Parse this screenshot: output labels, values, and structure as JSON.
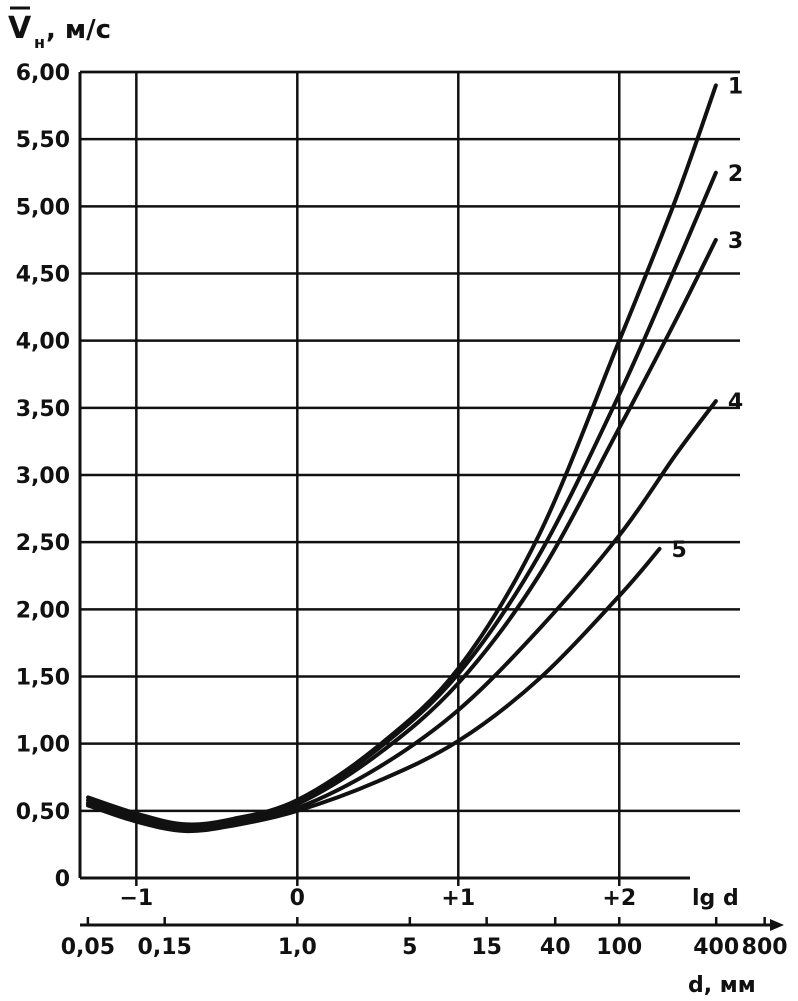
{
  "chart_data": {
    "type": "line",
    "y_axis": {
      "label_symbol": "V",
      "label_subscript": "н",
      "label_unit": ", м/с",
      "range": [
        0,
        6.0
      ],
      "ticks": [
        {
          "value": 0,
          "label": "0"
        },
        {
          "value": 0.5,
          "label": "0,50"
        },
        {
          "value": 1.0,
          "label": "1,00"
        },
        {
          "value": 1.5,
          "label": "1,50"
        },
        {
          "value": 2.0,
          "label": "2,00"
        },
        {
          "value": 2.5,
          "label": "2,50"
        },
        {
          "value": 3.0,
          "label": "3,00"
        },
        {
          "value": 3.5,
          "label": "3,50"
        },
        {
          "value": 4.0,
          "label": "4,00"
        },
        {
          "value": 4.5,
          "label": "4,50"
        },
        {
          "value": 5.0,
          "label": "5,00"
        },
        {
          "value": 5.5,
          "label": "5,50"
        },
        {
          "value": 6.0,
          "label": "6,00"
        }
      ]
    },
    "x_axis": {
      "label": "lg d",
      "range": [
        -1.35,
        2.75
      ],
      "ticks": [
        {
          "value": -1,
          "label": "−1"
        },
        {
          "value": 0,
          "label": "0"
        },
        {
          "value": 1,
          "label": "+1"
        },
        {
          "value": 2,
          "label": "+2"
        }
      ]
    },
    "x_axis_secondary": {
      "label": "d, мм",
      "ticks": [
        {
          "value": 0.05,
          "label": "0,05"
        },
        {
          "value": 0.15,
          "label": "0,15"
        },
        {
          "value": 1.0,
          "label": "1,0"
        },
        {
          "value": 5,
          "label": "5"
        },
        {
          "value": 15,
          "label": "15"
        },
        {
          "value": 40,
          "label": "40"
        },
        {
          "value": 100,
          "label": "100"
        },
        {
          "value": 400,
          "label": "400"
        },
        {
          "value": 800,
          "label": "800"
        }
      ]
    },
    "grid": true,
    "series": [
      {
        "name": "1",
        "x": [
          -1.3,
          -1.0,
          -0.7,
          -0.4,
          0.0,
          0.5,
          1.0,
          1.5,
          2.0,
          2.35,
          2.6
        ],
        "y": [
          0.6,
          0.48,
          0.4,
          0.44,
          0.58,
          0.98,
          1.56,
          2.55,
          4.0,
          5.05,
          5.9
        ]
      },
      {
        "name": "2",
        "x": [
          -1.3,
          -1.0,
          -0.7,
          -0.4,
          0.0,
          0.5,
          1.0,
          1.5,
          2.0,
          2.35,
          2.6
        ],
        "y": [
          0.58,
          0.46,
          0.39,
          0.43,
          0.57,
          0.96,
          1.52,
          2.4,
          3.6,
          4.55,
          5.25
        ]
      },
      {
        "name": "3",
        "x": [
          -1.3,
          -1.0,
          -0.7,
          -0.4,
          0.0,
          0.5,
          1.0,
          1.5,
          2.0,
          2.35,
          2.6
        ],
        "y": [
          0.56,
          0.44,
          0.37,
          0.41,
          0.55,
          0.92,
          1.45,
          2.25,
          3.35,
          4.15,
          4.75
        ]
      },
      {
        "name": "4",
        "x": [
          -1.3,
          -1.0,
          -0.7,
          -0.4,
          0.0,
          0.5,
          1.0,
          1.5,
          2.0,
          2.35,
          2.6
        ],
        "y": [
          0.55,
          0.43,
          0.36,
          0.4,
          0.52,
          0.82,
          1.25,
          1.85,
          2.55,
          3.15,
          3.55
        ]
      },
      {
        "name": "5",
        "x": [
          -1.3,
          -1.0,
          -0.7,
          -0.4,
          0.0,
          0.5,
          1.0,
          1.5,
          2.0,
          2.25
        ],
        "y": [
          0.54,
          0.42,
          0.35,
          0.39,
          0.5,
          0.72,
          1.02,
          1.48,
          2.1,
          2.45
        ]
      }
    ]
  }
}
